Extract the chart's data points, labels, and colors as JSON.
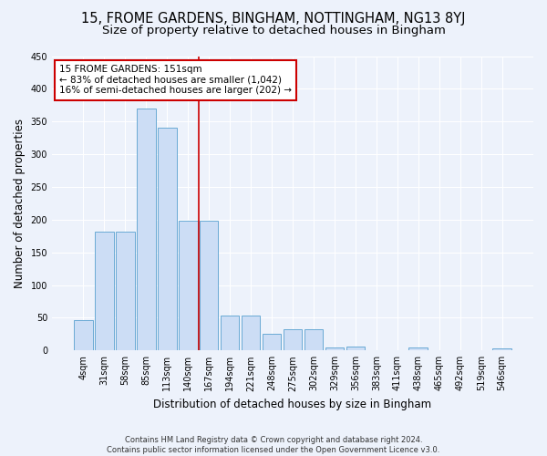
{
  "title_line1": "15, FROME GARDENS, BINGHAM, NOTTINGHAM, NG13 8YJ",
  "title_line2": "Size of property relative to detached houses in Bingham",
  "xlabel": "Distribution of detached houses by size in Bingham",
  "ylabel": "Number of detached properties",
  "bin_labels": [
    "4sqm",
    "31sqm",
    "58sqm",
    "85sqm",
    "113sqm",
    "140sqm",
    "167sqm",
    "194sqm",
    "221sqm",
    "248sqm",
    "275sqm",
    "302sqm",
    "329sqm",
    "356sqm",
    "383sqm",
    "411sqm",
    "438sqm",
    "465sqm",
    "492sqm",
    "519sqm",
    "546sqm"
  ],
  "bar_heights": [
    47,
    182,
    182,
    370,
    340,
    199,
    199,
    54,
    54,
    26,
    33,
    33,
    5,
    6,
    0,
    0,
    5,
    0,
    0,
    0,
    3
  ],
  "bar_color": "#ccddf5",
  "bar_edge_color": "#6aaad4",
  "bg_color": "#edf2fb",
  "grid_color": "#ffffff",
  "vline_x": 5.5,
  "vline_color": "#cc0000",
  "annotation_text": "15 FROME GARDENS: 151sqm\n← 83% of detached houses are smaller (1,042)\n16% of semi-detached houses are larger (202) →",
  "annotation_box_color": "white",
  "annotation_box_edge": "#cc0000",
  "ylim": [
    0,
    450
  ],
  "yticks": [
    0,
    50,
    100,
    150,
    200,
    250,
    300,
    350,
    400,
    450
  ],
  "footnote": "Contains HM Land Registry data © Crown copyright and database right 2024.\nContains public sector information licensed under the Open Government Licence v3.0.",
  "title_fontsize": 10.5,
  "subtitle_fontsize": 9.5,
  "xlabel_fontsize": 8.5,
  "ylabel_fontsize": 8.5,
  "tick_fontsize": 7,
  "annotation_fontsize": 7.5,
  "footnote_fontsize": 6
}
